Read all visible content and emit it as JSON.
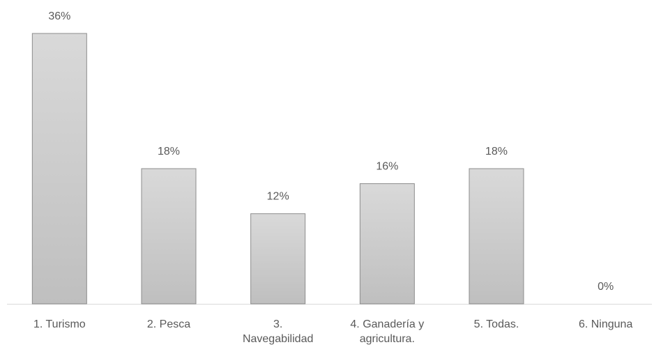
{
  "chart_data": {
    "type": "bar",
    "categories": [
      "1. Turismo",
      "2. Pesca",
      "3. Navegabilidad",
      "4. Ganadería y agricultura.",
      "5. Todas.",
      "6. Ninguna"
    ],
    "values": [
      36,
      18,
      12,
      16,
      18,
      0
    ],
    "value_labels": [
      "36%",
      "18%",
      "12%",
      "16%",
      "18%",
      "0%"
    ],
    "color": "#d0d0d0"
  }
}
